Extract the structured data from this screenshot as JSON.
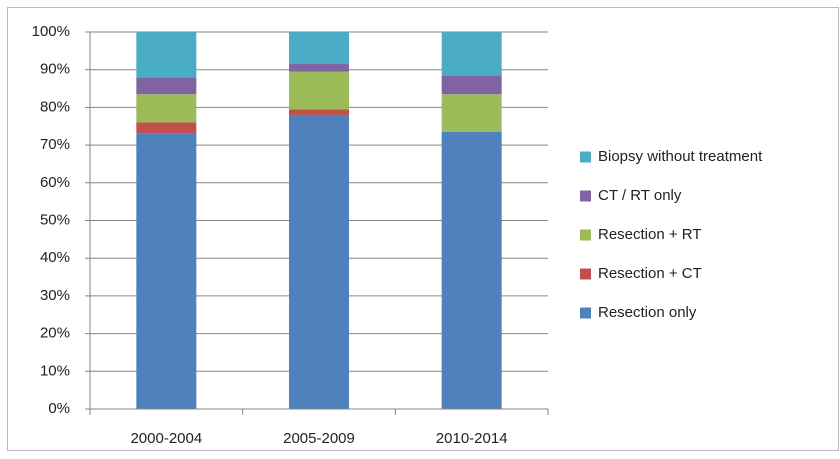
{
  "chart_data": {
    "type": "stacked_bar",
    "categories": [
      "2000-2004",
      "2005-2009",
      "2010-2014"
    ],
    "series": [
      {
        "name": "Resection only",
        "color": "#4f81bd",
        "values": [
          73,
          78,
          73.5
        ]
      },
      {
        "name": "Resection + CT",
        "color": "#c0504d",
        "values": [
          3,
          1.5,
          0
        ]
      },
      {
        "name": "Resection + RT",
        "color": "#9bbb59",
        "values": [
          7.5,
          10,
          10
        ]
      },
      {
        "name": "CT / RT only",
        "color": "#8064a2",
        "values": [
          4.5,
          2,
          5
        ]
      },
      {
        "name": "Biopsy without treatment",
        "color": "#4bacc6",
        "values": [
          12,
          8.5,
          11.5
        ]
      }
    ],
    "ylim": [
      0,
      100
    ],
    "yticks": [
      {
        "value": 0,
        "label": "0%"
      },
      {
        "value": 10,
        "label": "10%"
      },
      {
        "value": 20,
        "label": "20%"
      },
      {
        "value": 30,
        "label": "30%"
      },
      {
        "value": 40,
        "label": "40%"
      },
      {
        "value": 50,
        "label": "50%"
      },
      {
        "value": 60,
        "label": "60%"
      },
      {
        "value": 70,
        "label": "70%"
      },
      {
        "value": 80,
        "label": "80%"
      },
      {
        "value": 90,
        "label": "90%"
      },
      {
        "value": 100,
        "label": "100%"
      }
    ],
    "grid": true,
    "legend": "right"
  }
}
